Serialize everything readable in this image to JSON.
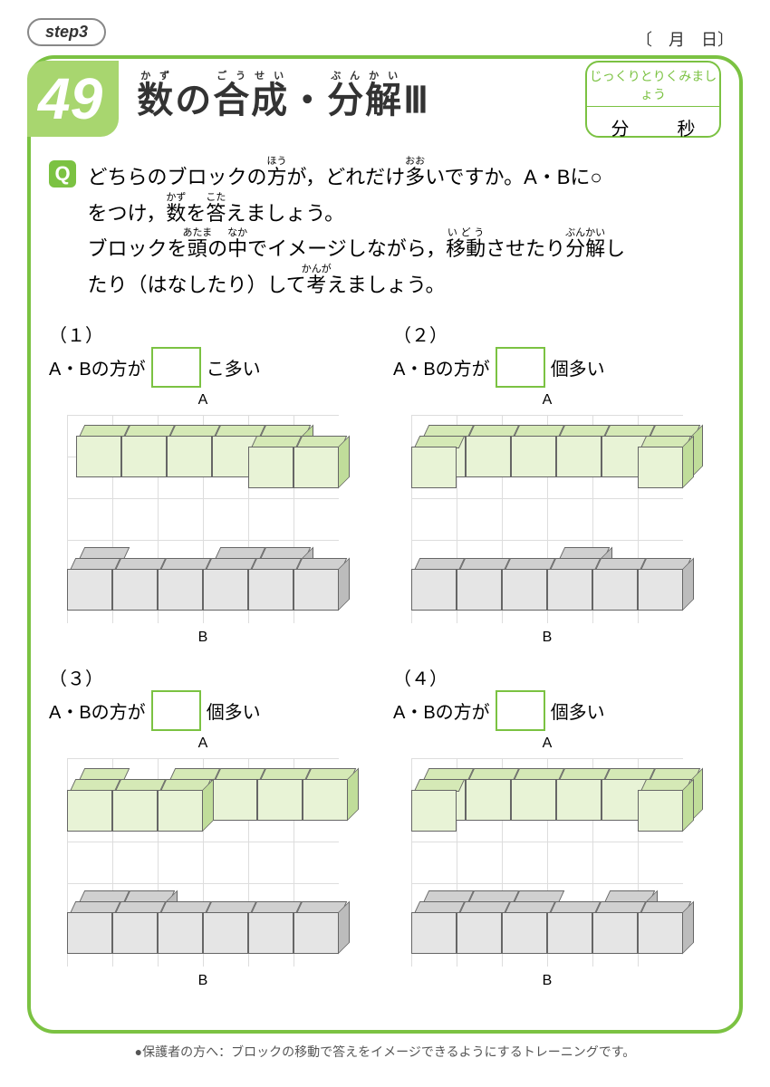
{
  "step_label": "step3",
  "date_month": "月",
  "date_day": "日",
  "page_number": "49",
  "title": "数の合成・分解Ⅲ",
  "time_hint": "じっくりとりくみましょう",
  "minutes": "分",
  "seconds": "秒",
  "q_label": "Q",
  "question_line1": "どちらのブロックの方が，どれだけ多いですか。A・Bに○",
  "question_line2": "をつけ，数を答えましょう。",
  "question_line3": "ブロックを頭の中でイメージしながら，移動させたり分解し",
  "question_line4": "たり（はなしたり）して考えましょう。",
  "problems": [
    {
      "num": "（１）",
      "sentence_pre": "A・Bの方が",
      "sentence_post": "こ多い",
      "label_a": "A",
      "label_b": "B",
      "row_a": [
        [
          0,
          1,
          0
        ],
        [
          1,
          1,
          0
        ],
        [
          2,
          1,
          0
        ],
        [
          3,
          1,
          0
        ],
        [
          4,
          1,
          0
        ],
        [
          4,
          0,
          0
        ],
        [
          5,
          0,
          0
        ]
      ],
      "row_b": [
        [
          0,
          1,
          1
        ],
        [
          0,
          0,
          1
        ],
        [
          1,
          0,
          1
        ],
        [
          2,
          0,
          1
        ],
        [
          3,
          0,
          1
        ],
        [
          3,
          1,
          1
        ],
        [
          4,
          1,
          1
        ],
        [
          4,
          0,
          1
        ],
        [
          5,
          0,
          1
        ]
      ]
    },
    {
      "num": "（２）",
      "sentence_pre": "A・Bの方が",
      "sentence_post": "個多い",
      "label_a": "A",
      "label_b": "B",
      "row_a": [
        [
          0,
          1,
          0
        ],
        [
          0,
          0,
          0
        ],
        [
          1,
          1,
          0
        ],
        [
          2,
          1,
          0
        ],
        [
          3,
          1,
          0
        ],
        [
          4,
          1,
          0
        ],
        [
          5,
          1,
          0
        ],
        [
          5,
          0,
          0
        ]
      ],
      "row_b": [
        [
          0,
          0,
          1
        ],
        [
          1,
          0,
          1
        ],
        [
          2,
          0,
          1
        ],
        [
          3,
          0,
          1
        ],
        [
          3,
          1,
          1
        ],
        [
          4,
          0,
          1
        ],
        [
          5,
          0,
          1
        ]
      ]
    },
    {
      "num": "（３）",
      "sentence_pre": "A・Bの方が",
      "sentence_post": "個多い",
      "label_a": "A",
      "label_b": "B",
      "row_a": [
        [
          0,
          1,
          0
        ],
        [
          0,
          0,
          0
        ],
        [
          1,
          0,
          0
        ],
        [
          2,
          1,
          0
        ],
        [
          2,
          0,
          0
        ],
        [
          3,
          1,
          0
        ],
        [
          4,
          1,
          0
        ],
        [
          5,
          1,
          0
        ]
      ],
      "row_b": [
        [
          0,
          1,
          1
        ],
        [
          0,
          0,
          1
        ],
        [
          1,
          1,
          1
        ],
        [
          1,
          0,
          1
        ],
        [
          2,
          0,
          1
        ],
        [
          3,
          0,
          1
        ],
        [
          4,
          0,
          1
        ],
        [
          5,
          0,
          1
        ]
      ]
    },
    {
      "num": "（４）",
      "sentence_pre": "A・Bの方が",
      "sentence_post": "個多い",
      "label_a": "A",
      "label_b": "B",
      "row_a": [
        [
          0,
          1,
          0
        ],
        [
          0,
          0,
          0
        ],
        [
          1,
          1,
          0
        ],
        [
          2,
          1,
          0
        ],
        [
          3,
          1,
          0
        ],
        [
          4,
          1,
          0
        ],
        [
          5,
          1,
          0
        ],
        [
          5,
          0,
          0
        ]
      ],
      "row_b": [
        [
          0,
          1,
          1
        ],
        [
          0,
          0,
          1
        ],
        [
          1,
          1,
          1
        ],
        [
          1,
          0,
          1
        ],
        [
          2,
          1,
          1
        ],
        [
          2,
          0,
          1
        ],
        [
          3,
          0,
          1
        ],
        [
          4,
          0,
          1
        ],
        [
          4,
          1,
          1
        ],
        [
          5,
          0,
          1
        ]
      ]
    }
  ],
  "footer": "●保護者の方へ：ブロックの移動で答えをイメージできるようにするトレーニングです。",
  "colors": {
    "green": "#7bc242",
    "light_green": "#d5e9b6",
    "gray": "#e5e5e5"
  }
}
